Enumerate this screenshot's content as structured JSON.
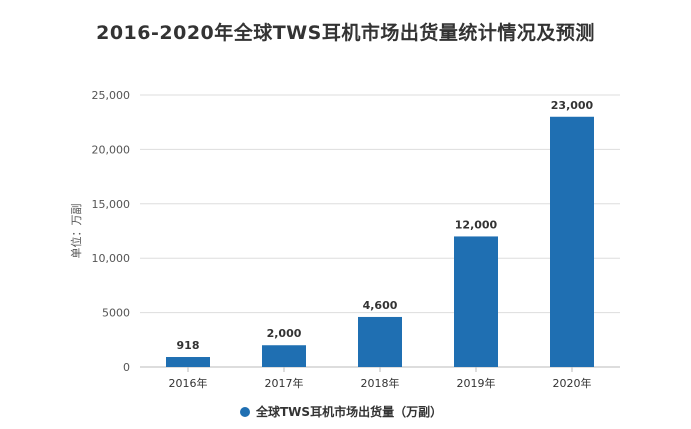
{
  "chart_data": {
    "type": "bar",
    "title": "2016-2020年全球TWS耳机市场出货量统计情况及预测",
    "ylabel": "单位：万副",
    "categories": [
      "2016年",
      "2017年",
      "2018年",
      "2019年",
      "2020年"
    ],
    "series": [
      {
        "name": "全球TWS耳机市场出货量（万副）",
        "values": [
          918,
          2000,
          4600,
          12000,
          23000
        ],
        "color": "#1f6fb2"
      }
    ],
    "data_labels": [
      "918",
      "2,000",
      "4,600",
      "12,000",
      "23,000"
    ],
    "yticks": [
      0,
      5000,
      10000,
      15000,
      20000,
      25000
    ],
    "ytick_labels": [
      "0",
      "5000",
      "10,000",
      "15,000",
      "20,000",
      "25,000"
    ],
    "ylim": [
      0,
      25000
    ],
    "grid": true,
    "legend_position": "bottom"
  }
}
